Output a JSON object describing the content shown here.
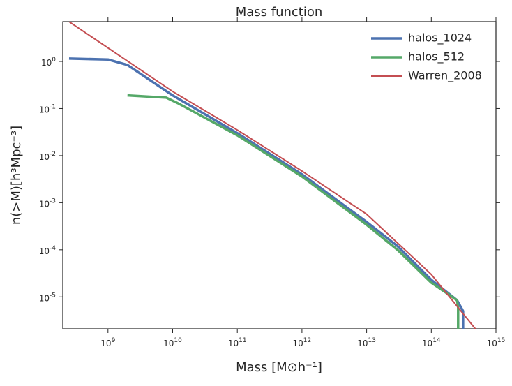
{
  "chart_data": {
    "type": "line",
    "title": "Mass function",
    "x_label": "Mass [M⊙h⁻¹]",
    "y_label": "n(>M)[h³Mpc⁻³]",
    "xscale": "log",
    "yscale": "log",
    "xlim": [
      200000000,
      1000000000000000
    ],
    "ylim": [
      2.1e-06,
      7
    ],
    "xticks": [
      {
        "value": 1000000000,
        "label": "10^9"
      },
      {
        "value": 10000000000,
        "label": "10^10"
      },
      {
        "value": 100000000000,
        "label": "10^11"
      },
      {
        "value": 1000000000000,
        "label": "10^12"
      },
      {
        "value": 10000000000000,
        "label": "10^13"
      },
      {
        "value": 100000000000000,
        "label": "10^14"
      },
      {
        "value": 1000000000000000,
        "label": "10^15"
      }
    ],
    "yticks": [
      {
        "value": 1,
        "label": "10^0"
      },
      {
        "value": 0.1,
        "label": "10^-1"
      },
      {
        "value": 0.01,
        "label": "10^-2"
      },
      {
        "value": 0.001,
        "label": "10^-3"
      },
      {
        "value": 0.0001,
        "label": "10^-4"
      },
      {
        "value": 1e-05,
        "label": "10^-5"
      }
    ],
    "legend": "upper right",
    "series": [
      {
        "name": "halos_1024",
        "color": "#4c72b0",
        "width": 3.5,
        "x": [
          250000000,
          1000000000,
          2000000000,
          10000000000,
          100000000000,
          1000000000000,
          10000000000000,
          30000000000000,
          100000000000000,
          250000000000000,
          310000000000000,
          310000000000000
        ],
        "values": [
          1.15,
          1.1,
          0.84,
          0.19,
          0.03,
          0.004,
          0.00039,
          0.00012,
          2.3e-05,
          8.5e-06,
          5e-06,
          2.1e-06
        ]
      },
      {
        "name": "halos_512",
        "color": "#55a868",
        "width": 3.5,
        "x": [
          2000000000,
          8000000000,
          12000000000,
          100000000000,
          1000000000000,
          10000000000000,
          30000000000000,
          100000000000000,
          250000000000000,
          260000000000000,
          260000000000000
        ],
        "values": [
          0.19,
          0.17,
          0.13,
          0.027,
          0.0036,
          0.00034,
          0.0001,
          2e-05,
          8.5e-06,
          6e-06,
          2.1e-06
        ]
      },
      {
        "name": "Warren_2008",
        "color": "#c44e52",
        "width": 2,
        "x": [
          250000000,
          10000000000,
          100000000000,
          1000000000000,
          10000000000000,
          100000000000000,
          480000000000000
        ],
        "values": [
          7,
          0.23,
          0.035,
          0.0047,
          0.00057,
          3e-05,
          2.1e-06
        ]
      }
    ]
  }
}
